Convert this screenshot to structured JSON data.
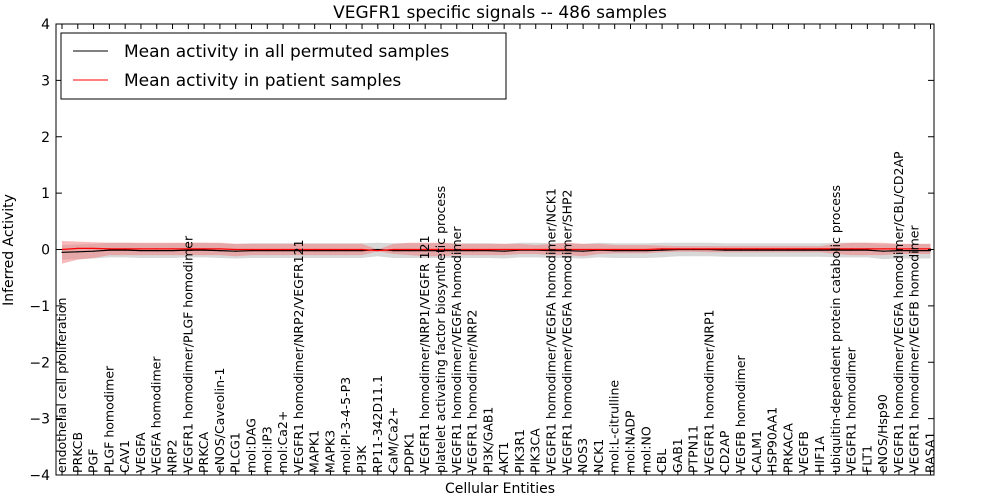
{
  "chart_data": {
    "type": "line",
    "title": "VEGFR1 specific signals -- 486 samples",
    "xlabel": "Cellular Entities",
    "ylabel": "Inferred Activity",
    "ylim": [
      -4,
      4
    ],
    "yticks": [
      "4",
      "3",
      "2",
      "1",
      "0",
      "−1",
      "−2",
      "−3",
      "−4"
    ],
    "grid": false,
    "legend_position": "top-left",
    "categories": [
      "endothelial cell proliferation",
      "PRKCB",
      "PGF",
      "PLGF homodimer",
      "CAV1",
      "VEGFA",
      "VEGFA homodimer",
      "NRP2",
      "VEGFR1 homodimer/PLGF homodimer",
      "PRKCA",
      "eNOS/Caveolin-1",
      "PLCG1",
      "mol:DAG",
      "mol:IP3",
      "mol:Ca2+",
      "VEGFR1 homodimer/NRP2/VEGFR121",
      "MAPK1",
      "MAPK3",
      "mol:PI-3-4-5-P3",
      "PI3K",
      "RP11-342D11.1",
      "CaM/Ca2+",
      "PDPK1",
      "VEGFR1 homodimer/NRP1/VEGFR 121",
      "platelet activating factor biosynthetic process",
      "VEGFR1 homodimer/VEGFA homodimer",
      "VEGFR1 homodimer/NRP2",
      "PI3K/GAB1",
      "AKT1",
      "PIK3R1",
      "PIK3CA",
      "VEGFR1 homodimer/VEGFA homodimer/NCK1",
      "VEGFR1 homodimer/VEGFA homodimer/SHP2",
      "NOS3",
      "NCK1",
      "mol:L-citrulline",
      "mol:NADP",
      "mol:NO",
      "CBL",
      "GAB1",
      "PTPN11",
      "VEGFR1 homodimer/NRP1",
      "CD2AP",
      "VEGFB homodimer",
      "CALM1",
      "HSP90AA1",
      "PRKACA",
      "VEGFB",
      "HIF1A",
      "ubiquitin-dependent protein catabolic process",
      "VEGFR1 homodimer",
      "FLT1",
      "eNOS/Hsp90",
      "VEGFR1 homodimer/VEGFA homodimer/CBL/CD2AP",
      "VEGFR1 homodimer/VEGFB homodimer",
      "RASA1"
    ],
    "series": [
      {
        "name": "Mean activity in all permuted samples",
        "color": "#000000",
        "values": [
          -0.05,
          -0.04,
          -0.03,
          -0.01,
          -0.01,
          -0.02,
          -0.02,
          -0.02,
          -0.01,
          -0.01,
          -0.02,
          -0.03,
          -0.02,
          -0.02,
          -0.02,
          -0.02,
          -0.02,
          -0.02,
          -0.02,
          -0.02,
          0.0,
          -0.02,
          -0.02,
          -0.02,
          -0.02,
          -0.02,
          -0.02,
          -0.02,
          -0.03,
          -0.01,
          -0.01,
          -0.02,
          -0.02,
          -0.03,
          -0.01,
          -0.02,
          -0.02,
          -0.02,
          -0.01,
          0.0,
          0.0,
          0.0,
          -0.01,
          -0.01,
          -0.01,
          -0.01,
          -0.01,
          -0.01,
          -0.01,
          -0.01,
          -0.01,
          -0.01,
          -0.03,
          -0.02,
          -0.02,
          -0.02
        ],
        "band_lower": [
          -0.18,
          -0.17,
          -0.16,
          -0.14,
          -0.14,
          -0.15,
          -0.15,
          -0.15,
          -0.14,
          -0.14,
          -0.15,
          -0.16,
          -0.15,
          -0.15,
          -0.15,
          -0.15,
          -0.15,
          -0.15,
          -0.15,
          -0.15,
          -0.12,
          -0.15,
          -0.15,
          -0.15,
          -0.15,
          -0.15,
          -0.15,
          -0.15,
          -0.16,
          -0.14,
          -0.14,
          -0.15,
          -0.15,
          -0.16,
          -0.14,
          -0.15,
          -0.15,
          -0.15,
          -0.14,
          -0.12,
          -0.12,
          -0.12,
          -0.13,
          -0.13,
          -0.13,
          -0.13,
          -0.13,
          -0.13,
          -0.13,
          -0.14,
          -0.14,
          -0.14,
          -0.17,
          -0.16,
          -0.16,
          -0.16
        ],
        "band_upper": [
          0.08,
          0.09,
          0.1,
          0.12,
          0.12,
          0.11,
          0.11,
          0.11,
          0.12,
          0.12,
          0.11,
          0.1,
          0.11,
          0.11,
          0.11,
          0.11,
          0.11,
          0.11,
          0.11,
          0.11,
          0.12,
          0.11,
          0.11,
          0.11,
          0.11,
          0.11,
          0.11,
          0.11,
          0.1,
          0.12,
          0.12,
          0.11,
          0.11,
          0.1,
          0.12,
          0.11,
          0.11,
          0.11,
          0.12,
          0.12,
          0.12,
          0.12,
          0.11,
          0.11,
          0.11,
          0.11,
          0.11,
          0.11,
          0.11,
          0.12,
          0.12,
          0.12,
          0.09,
          0.1,
          0.1,
          0.1
        ]
      },
      {
        "name": "Mean activity in patient samples",
        "color": "#ff0000",
        "values": [
          0.0,
          0.02,
          0.02,
          0.01,
          0.01,
          0.01,
          0.01,
          0.01,
          0.01,
          0.01,
          0.01,
          0.0,
          0.0,
          0.0,
          0.0,
          0.0,
          0.0,
          0.0,
          0.0,
          0.0,
          -0.02,
          0.0,
          0.0,
          0.0,
          0.0,
          0.0,
          0.0,
          0.0,
          0.0,
          0.0,
          0.0,
          0.0,
          0.0,
          0.0,
          0.0,
          0.0,
          0.0,
          0.0,
          0.01,
          0.01,
          0.01,
          0.01,
          0.01,
          0.01,
          0.01,
          0.01,
          0.01,
          0.01,
          0.01,
          0.01,
          0.01,
          0.01,
          0.01,
          0.01,
          0.01,
          0.01
        ],
        "band_lower": [
          -0.25,
          -0.18,
          -0.15,
          -0.1,
          -0.1,
          -0.1,
          -0.1,
          -0.1,
          -0.1,
          -0.1,
          -0.1,
          -0.12,
          -0.1,
          -0.1,
          -0.1,
          -0.1,
          -0.1,
          -0.1,
          -0.1,
          -0.1,
          -0.03,
          -0.08,
          -0.1,
          -0.12,
          -0.12,
          -0.1,
          -0.1,
          -0.1,
          -0.1,
          -0.08,
          -0.08,
          -0.1,
          -0.1,
          -0.12,
          -0.08,
          -0.07,
          -0.07,
          -0.07,
          -0.05,
          -0.04,
          -0.04,
          -0.05,
          -0.05,
          -0.05,
          -0.05,
          -0.05,
          -0.05,
          -0.05,
          -0.05,
          -0.08,
          -0.1,
          -0.1,
          -0.1,
          -0.08,
          -0.08,
          -0.08
        ],
        "band_upper": [
          0.15,
          0.14,
          0.13,
          0.12,
          0.12,
          0.12,
          0.12,
          0.12,
          0.12,
          0.12,
          0.12,
          0.1,
          0.1,
          0.1,
          0.1,
          0.1,
          0.1,
          0.1,
          0.1,
          0.1,
          0.0,
          0.1,
          0.12,
          0.12,
          0.12,
          0.1,
          0.1,
          0.1,
          0.1,
          0.1,
          0.08,
          0.1,
          0.12,
          0.1,
          0.1,
          0.08,
          0.08,
          0.08,
          0.07,
          0.06,
          0.06,
          0.06,
          0.06,
          0.06,
          0.06,
          0.06,
          0.06,
          0.06,
          0.06,
          0.1,
          0.12,
          0.12,
          0.12,
          0.1,
          0.1,
          0.1
        ]
      }
    ]
  },
  "colors": {
    "grey_band": "#c8c8c8",
    "red_band": "#f08080"
  }
}
